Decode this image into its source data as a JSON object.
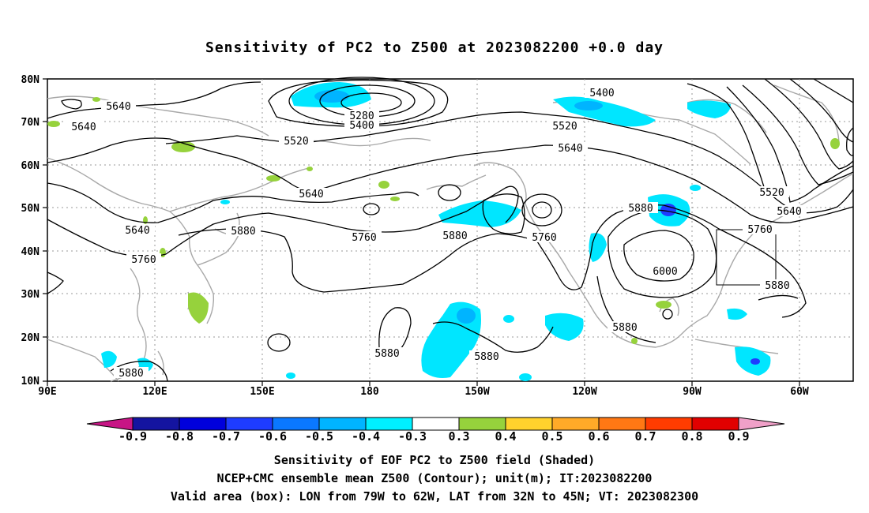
{
  "title": "Sensitivity of PC2 to Z500 at 2023082200 +0.0 day",
  "map": {
    "lat_ticks": [
      "80N",
      "70N",
      "60N",
      "50N",
      "40N",
      "30N",
      "20N",
      "10N"
    ],
    "lon_ticks": [
      "90E",
      "120E",
      "150E",
      "180",
      "150W",
      "120W",
      "90W",
      "60W"
    ],
    "contour_labels": [
      "5640",
      "5640",
      "5280",
      "5400",
      "5520",
      "5400",
      "5520",
      "5640",
      "5520",
      "5640",
      "5640",
      "5760",
      "5880",
      "5760",
      "5880",
      "5760",
      "5880",
      "5640",
      "5760",
      "6000",
      "5880",
      "5880",
      "5880",
      "5880",
      "5880"
    ],
    "valid_box": {
      "lon_from": "79W",
      "lon_to": "62W",
      "lat_from": "32N",
      "lat_to": "45N"
    }
  },
  "colorbar": {
    "labels": [
      "-0.9",
      "-0.8",
      "-0.7",
      "-0.6",
      "-0.5",
      "-0.4",
      "-0.3",
      "0.3",
      "0.4",
      "0.5",
      "0.6",
      "0.7",
      "0.8",
      "0.9"
    ],
    "colors": {
      "end_left": "#c71585",
      "bins": [
        "#1414a0",
        "#0000dc",
        "#1e3cff",
        "#0a78ff",
        "#00b4ff",
        "#00f0ff",
        "#ffffff",
        "#96d23c",
        "#ffd22d",
        "#ffaa28",
        "#ff7814",
        "#ff3c00",
        "#e10000"
      ],
      "end_right": "#f0a0c8"
    }
  },
  "captions": [
    "Sensitivity of EOF PC2 to Z500 field (Shaded)",
    "NCEP+CMC ensemble mean Z500 (Contour); unit(m); IT:2023082200",
    "Valid area (box): LON from 79W to 62W, LAT from 32N to 45N; VT: 2023082300"
  ]
}
